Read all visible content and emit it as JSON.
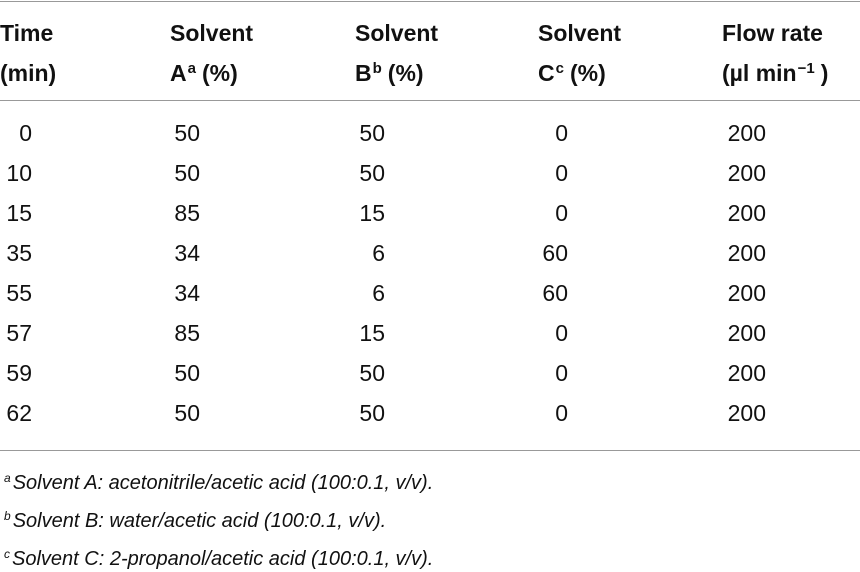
{
  "table": {
    "header": [
      {
        "line1": "Time",
        "line2": "(min)"
      },
      {
        "line1": "Solvent",
        "line2": "A",
        "sup": "a",
        "line2_end": "(%)"
      },
      {
        "line1": "Solvent",
        "line2": "B",
        "sup": "b",
        "line2_end": "(%)"
      },
      {
        "line1": "Solvent",
        "line2": "C",
        "sup": "c",
        "line2_end": "(%)"
      },
      {
        "line1": "Flow rate",
        "line2": "(µl min",
        "sup": "−1",
        "line2_end": ")"
      }
    ],
    "rows": [
      [
        0,
        50,
        50,
        0,
        200
      ],
      [
        10,
        50,
        50,
        0,
        200
      ],
      [
        15,
        85,
        15,
        0,
        200
      ],
      [
        35,
        34,
        6,
        60,
        200
      ],
      [
        55,
        34,
        6,
        60,
        200
      ],
      [
        57,
        85,
        15,
        0,
        200
      ],
      [
        59,
        50,
        50,
        0,
        200
      ],
      [
        62,
        50,
        50,
        0,
        200
      ]
    ],
    "footnotes": [
      {
        "mark": "a",
        "text": "Solvent A: acetonitrile/acetic acid (100:0.1, v/v)."
      },
      {
        "mark": "b",
        "text": "Solvent B: water/acetic acid (100:0.1, v/v)."
      },
      {
        "mark": "c",
        "text": "Solvent C: 2-propanol/acetic acid (100:0.1, v/v)."
      }
    ]
  }
}
